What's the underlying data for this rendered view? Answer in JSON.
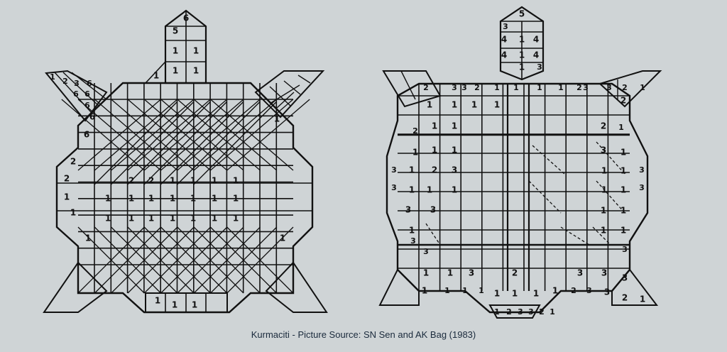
{
  "caption": "Kurmaciti - Picture Source: SN Sen and AK Bag (1983)",
  "colors": {
    "background": "#cfd4d6",
    "ink": "#111111",
    "caption": "#1a2a3c"
  },
  "figures": [
    {
      "name": "left-turtle",
      "labels": [
        "6",
        "5",
        "1",
        "1",
        "1",
        "1",
        "1",
        "1",
        "2",
        "3",
        "6",
        "6",
        "6",
        "6",
        "6",
        "6",
        "2",
        "1",
        "2",
        "2",
        "1",
        "1",
        "1",
        "1",
        "1",
        "1",
        "1",
        "1",
        "1",
        "1",
        "1",
        "1",
        "1",
        "1",
        "1",
        "1",
        "1",
        "1",
        "2",
        "1",
        "1",
        "1",
        "1",
        "1",
        "1",
        "1",
        "1",
        "1",
        "1",
        "1",
        "2",
        "1",
        "1"
      ]
    },
    {
      "name": "right-turtle",
      "labels": [
        "5",
        "3",
        "1",
        "4",
        "4",
        "1",
        "4",
        "4",
        "1",
        "3",
        "2",
        "3",
        "3",
        "2",
        "1",
        "1",
        "1",
        "1",
        "2",
        "3",
        "3",
        "2",
        "1",
        "2",
        "1",
        "1",
        "1",
        "1",
        "1",
        "1",
        "1",
        "1",
        "2",
        "3",
        "1",
        "1",
        "1",
        "3",
        "3",
        "2",
        "1",
        "1",
        "1",
        "2",
        "3",
        "1",
        "1",
        "1",
        "1",
        "3",
        "3",
        "1",
        "1",
        "1",
        "1",
        "3",
        "3",
        "1",
        "1",
        "1",
        "1",
        "3",
        "2",
        "3",
        "3",
        "3",
        "3",
        "3",
        "3",
        "1",
        "1",
        "1",
        "1",
        "1",
        "1",
        "1",
        "1",
        "2",
        "3",
        "3",
        "2",
        "1",
        "1",
        "2",
        "3",
        "3",
        "2",
        "1",
        "2",
        "3",
        "3",
        "3",
        "3",
        "3",
        "3"
      ]
    }
  ]
}
